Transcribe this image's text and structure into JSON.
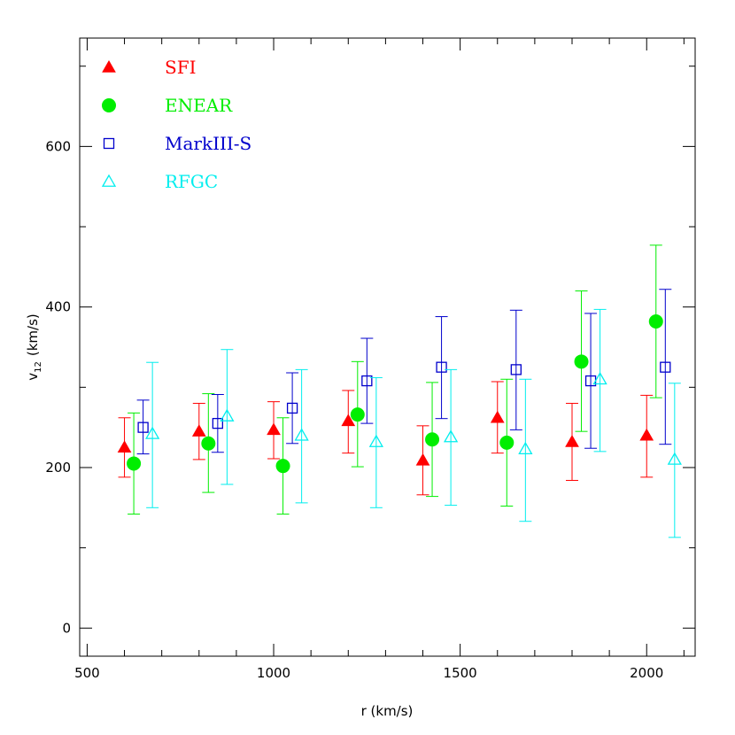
{
  "chart_data": {
    "type": "scatter",
    "xlabel": "r (km/s)",
    "ylabel": "v",
    "ylabel_sub": "12",
    "ylabel_unit": "(km/s)",
    "xlim": [
      480,
      2130
    ],
    "ylim": [
      -35,
      735
    ],
    "x_ticks": [
      500,
      1000,
      1500,
      2000
    ],
    "x_tick_labels": [
      "500",
      "1000",
      "1500",
      "2000"
    ],
    "y_ticks": [
      0,
      200,
      400,
      600
    ],
    "y_tick_labels": [
      "0",
      "200",
      "400",
      "600"
    ],
    "x_minor_step": 100,
    "y_minor_step": 100,
    "legend_position": "top-left",
    "series": [
      {
        "name": "SFI",
        "color": "#ff0000",
        "marker": "filled-triangle",
        "points": [
          {
            "x": 600,
            "y": 225,
            "lo": 188,
            "hi": 262
          },
          {
            "x": 800,
            "y": 245,
            "lo": 210,
            "hi": 280
          },
          {
            "x": 1000,
            "y": 247,
            "lo": 211,
            "hi": 282
          },
          {
            "x": 1200,
            "y": 258,
            "lo": 218,
            "hi": 296
          },
          {
            "x": 1400,
            "y": 209,
            "lo": 166,
            "hi": 252
          },
          {
            "x": 1600,
            "y": 262,
            "lo": 218,
            "hi": 307
          },
          {
            "x": 1800,
            "y": 232,
            "lo": 184,
            "hi": 280
          },
          {
            "x": 2000,
            "y": 240,
            "lo": 188,
            "hi": 290
          }
        ]
      },
      {
        "name": "ENEAR",
        "color": "#00ee00",
        "marker": "filled-circle",
        "points": [
          {
            "x": 625,
            "y": 205,
            "lo": 142,
            "hi": 268
          },
          {
            "x": 825,
            "y": 230,
            "lo": 169,
            "hi": 292
          },
          {
            "x": 1025,
            "y": 202,
            "lo": 142,
            "hi": 262
          },
          {
            "x": 1225,
            "y": 266,
            "lo": 201,
            "hi": 332
          },
          {
            "x": 1425,
            "y": 235,
            "lo": 164,
            "hi": 306
          },
          {
            "x": 1625,
            "y": 231,
            "lo": 152,
            "hi": 310
          },
          {
            "x": 1825,
            "y": 332,
            "lo": 245,
            "hi": 420
          },
          {
            "x": 2025,
            "y": 382,
            "lo": 287,
            "hi": 477
          }
        ]
      },
      {
        "name": "MarkIII-S",
        "color": "#0000cc",
        "marker": "open-square",
        "points": [
          {
            "x": 650,
            "y": 250,
            "lo": 217,
            "hi": 284
          },
          {
            "x": 850,
            "y": 255,
            "lo": 219,
            "hi": 291
          },
          {
            "x": 1050,
            "y": 274,
            "lo": 230,
            "hi": 318
          },
          {
            "x": 1250,
            "y": 308,
            "lo": 255,
            "hi": 361
          },
          {
            "x": 1450,
            "y": 325,
            "lo": 261,
            "hi": 388
          },
          {
            "x": 1650,
            "y": 322,
            "lo": 247,
            "hi": 396
          },
          {
            "x": 1850,
            "y": 308,
            "lo": 224,
            "hi": 392
          },
          {
            "x": 2050,
            "y": 325,
            "lo": 229,
            "hi": 422
          }
        ]
      },
      {
        "name": "RFGC",
        "color": "#00eeee",
        "marker": "open-triangle",
        "points": [
          {
            "x": 675,
            "y": 242,
            "lo": 150,
            "hi": 331
          },
          {
            "x": 875,
            "y": 264,
            "lo": 179,
            "hi": 347
          },
          {
            "x": 1075,
            "y": 240,
            "lo": 156,
            "hi": 322
          },
          {
            "x": 1275,
            "y": 232,
            "lo": 150,
            "hi": 312
          },
          {
            "x": 1475,
            "y": 238,
            "lo": 153,
            "hi": 322
          },
          {
            "x": 1675,
            "y": 223,
            "lo": 133,
            "hi": 310
          },
          {
            "x": 1875,
            "y": 310,
            "lo": 220,
            "hi": 397
          },
          {
            "x": 2075,
            "y": 210,
            "lo": 113,
            "hi": 305
          }
        ]
      }
    ]
  }
}
